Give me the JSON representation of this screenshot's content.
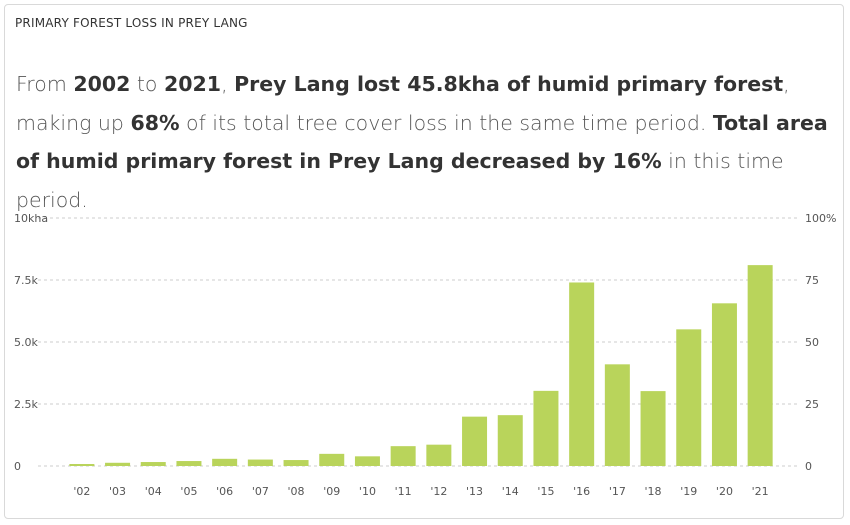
{
  "widget": {
    "title": "PRIMARY FOREST LOSS IN PREY LANG",
    "sentence": {
      "p1": "From ",
      "start_year": "2002",
      "p2": " to ",
      "end_year": "2021",
      "p3": ", ",
      "loss_phrase": "Prey Lang lost 45.8kha of humid primary forest",
      "p4": ", making up ",
      "share": "68%",
      "p5": " of its total tree cover loss in the same time period. ",
      "decrease_phrase": "Total area of humid primary forest in Prey Lang decreased by 16%",
      "p6": " in this time period."
    }
  },
  "colors": {
    "bar": "#b9d45b",
    "grid": "#cccccc",
    "axis_text": "#555555"
  },
  "chart_data": {
    "type": "bar",
    "categories": [
      "'02",
      "'03",
      "'04",
      "'05",
      "'06",
      "'07",
      "'08",
      "'09",
      "'10",
      "'11",
      "'12",
      "'13",
      "'14",
      "'15",
      "'16",
      "'17",
      "'18",
      "'19",
      "'20",
      "'21"
    ],
    "values": [
      80,
      130,
      160,
      200,
      290,
      260,
      240,
      490,
      390,
      800,
      860,
      1990,
      2050,
      3030,
      7400,
      4100,
      3020,
      5510,
      6560,
      8100
    ],
    "ylim": [
      0,
      10000
    ],
    "y_ticks": [
      {
        "value": 0,
        "label": "0"
      },
      {
        "value": 2500,
        "label": "2.5k"
      },
      {
        "value": 5000,
        "label": "5.0k"
      },
      {
        "value": 7500,
        "label": "7.5k"
      },
      {
        "value": 10000,
        "label": "10kha"
      }
    ],
    "y2_ticks": [
      {
        "value": 0,
        "label": "0"
      },
      {
        "value": 25,
        "label": "25"
      },
      {
        "value": 50,
        "label": "50"
      },
      {
        "value": 75,
        "label": "75"
      },
      {
        "value": 100,
        "label": "100%"
      }
    ],
    "y2lim": [
      0,
      100
    ],
    "grid": true
  }
}
